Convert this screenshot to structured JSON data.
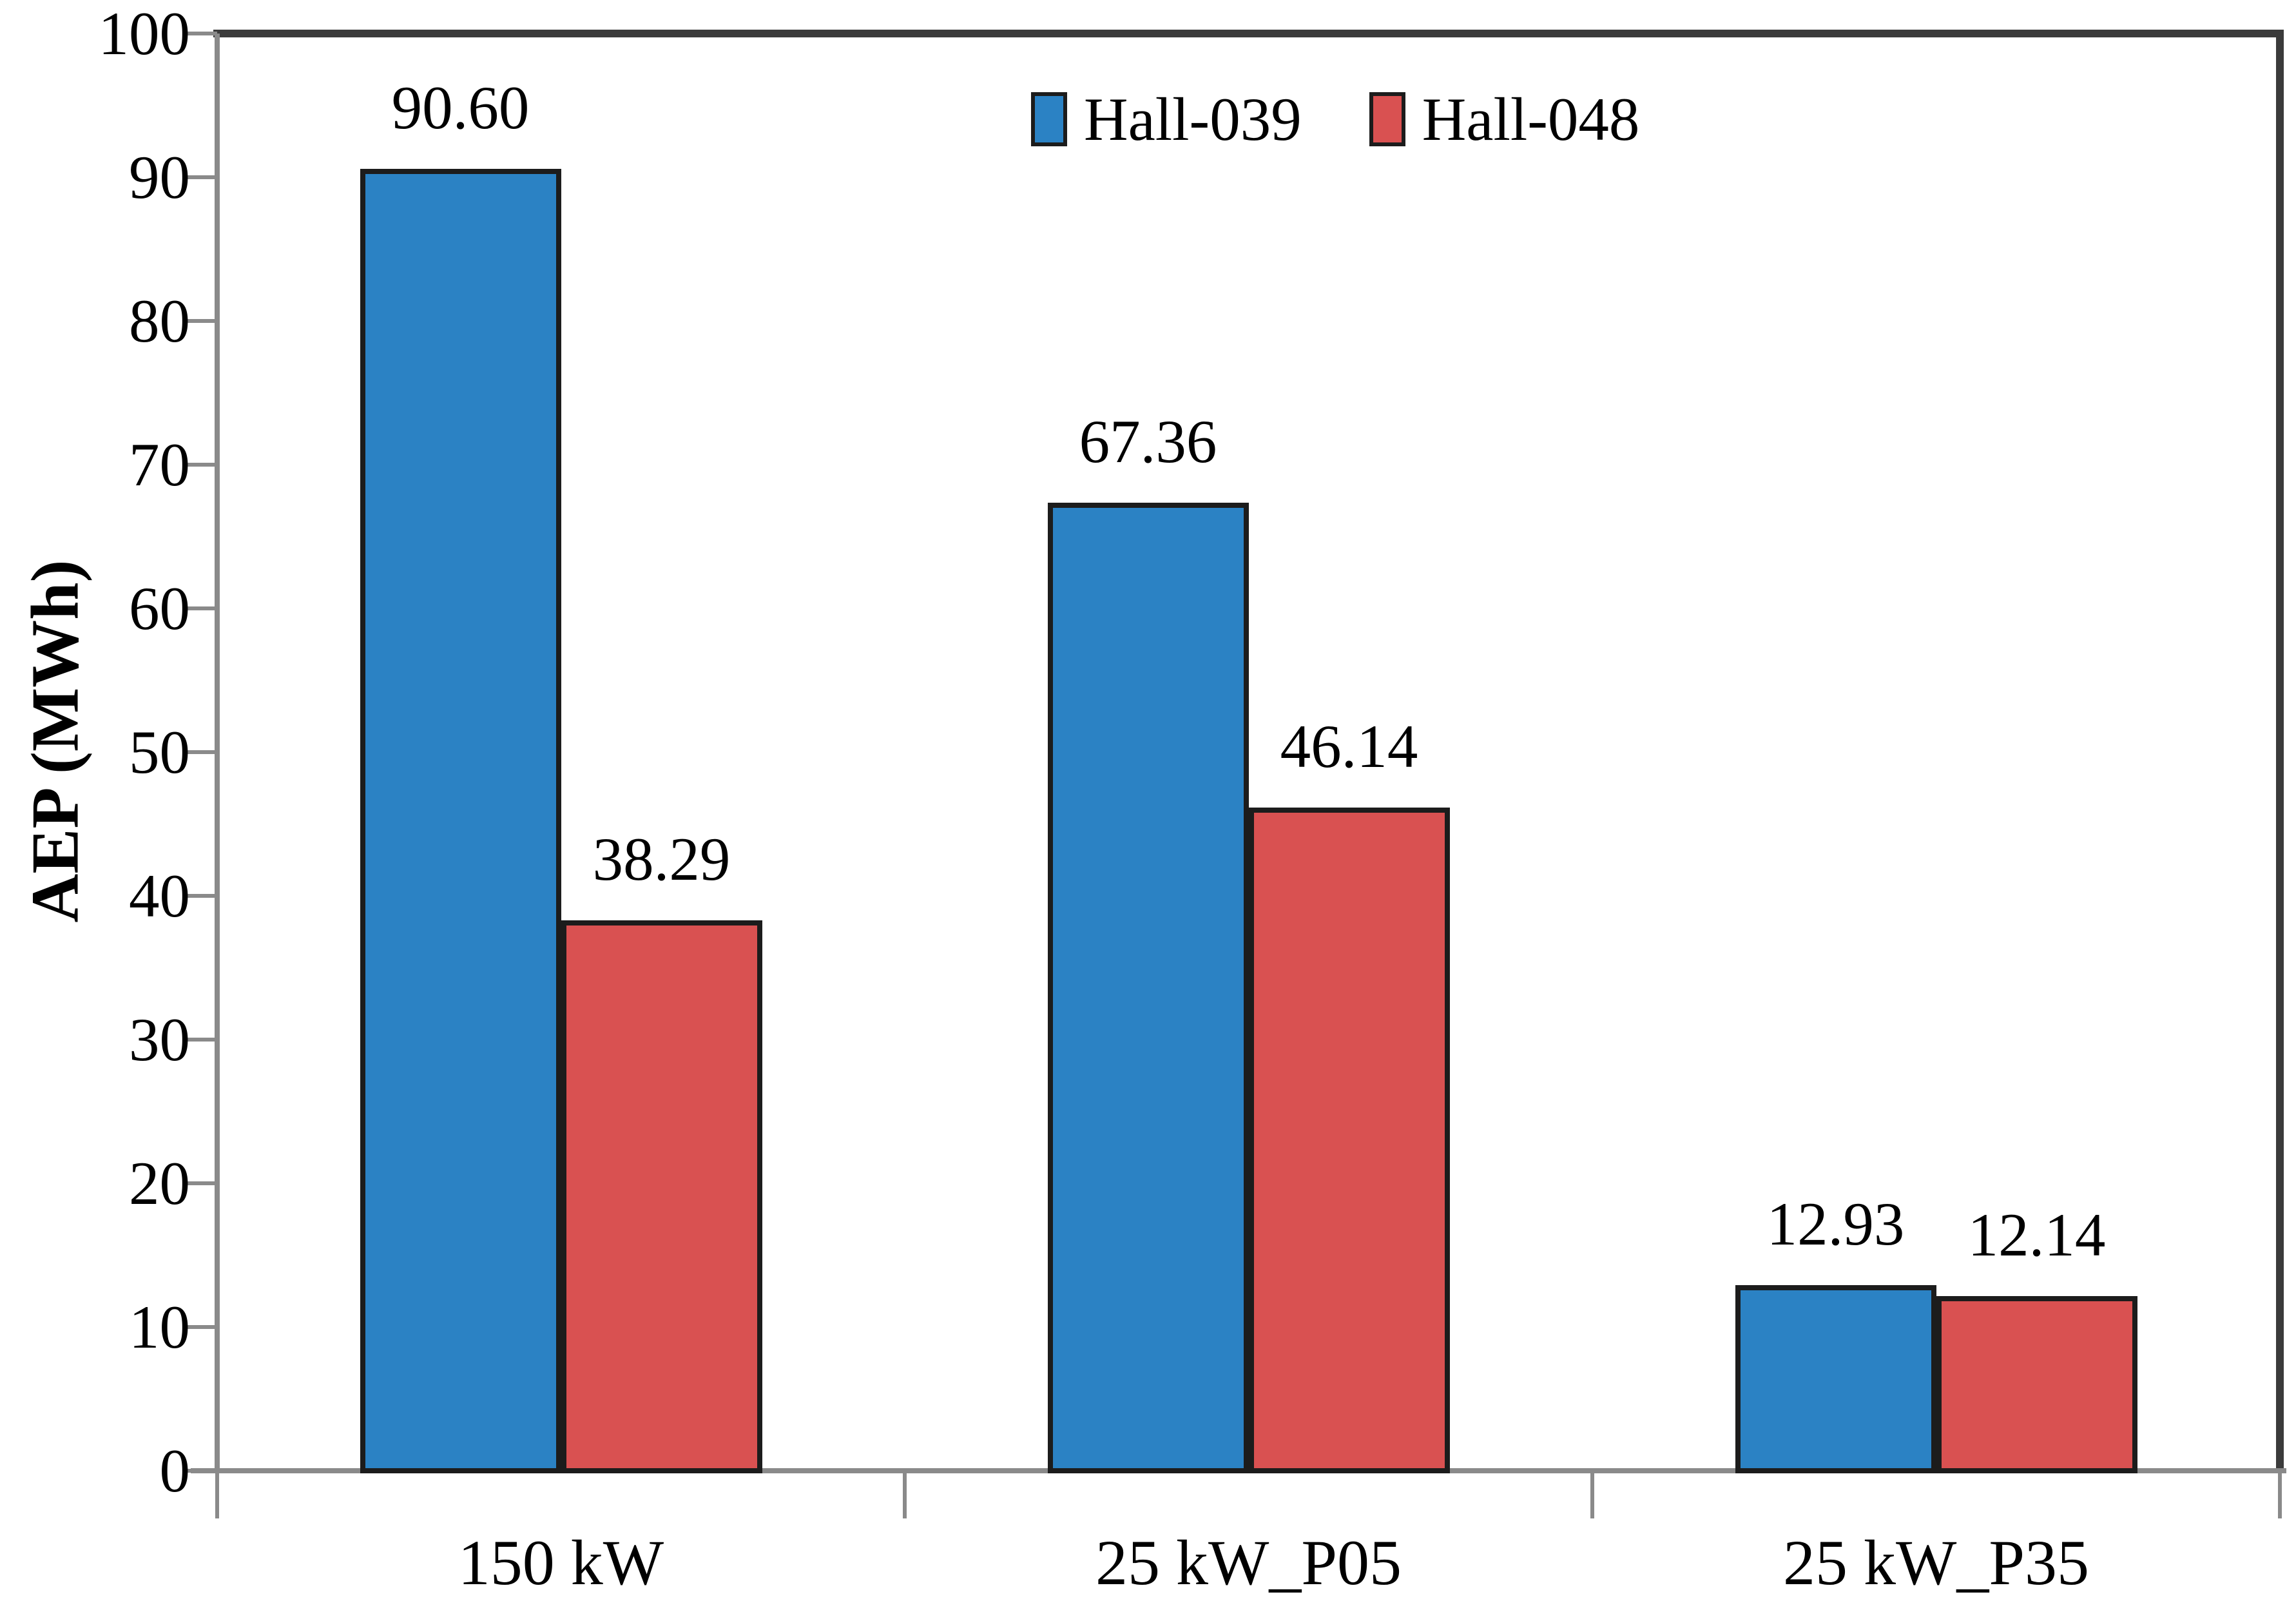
{
  "chart_data": {
    "type": "bar",
    "categories": [
      "150 kW",
      "25 kW_P05",
      "25 kW_P35"
    ],
    "series": [
      {
        "name": "Hall-039",
        "color": "#2B82C4",
        "values": [
          90.6,
          67.36,
          12.93
        ],
        "labels": [
          "90.60",
          "67.36",
          "12.93"
        ]
      },
      {
        "name": "Hall-048",
        "color": "#D95151",
        "values": [
          38.29,
          46.14,
          12.14
        ],
        "labels": [
          "38.29",
          "46.14",
          "12.14"
        ]
      }
    ],
    "title": "",
    "xlabel": "",
    "ylabel": "AEP (MWh)",
    "ylim": [
      0,
      100
    ],
    "yticks": [
      0,
      10,
      20,
      30,
      40,
      50,
      60,
      70,
      80,
      90,
      100
    ],
    "ytick_labels": [
      "0",
      "10",
      "20",
      "30",
      "40",
      "50",
      "60",
      "70",
      "80",
      "90",
      "100"
    ],
    "grid": false,
    "legend_position": "top-center",
    "colors": {
      "axis_line": "#8A8A8A",
      "frame_line": "#3B3B3B",
      "bar_border": "#1C1C1C",
      "text": "#000000",
      "background": "#FFFFFF"
    }
  }
}
